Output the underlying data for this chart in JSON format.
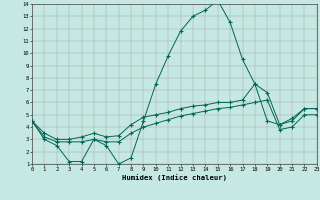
{
  "xlabel": "Humidex (Indice chaleur)",
  "background_color": "#c5e8e2",
  "line_color": "#006655",
  "line1_x": [
    0,
    1,
    2,
    3,
    4,
    5,
    6,
    7,
    8,
    9,
    10,
    11,
    12,
    13,
    14,
    15,
    16,
    17,
    18,
    19,
    20,
    21,
    22,
    23
  ],
  "line1_y": [
    4.5,
    3.0,
    2.5,
    1.2,
    1.2,
    3.0,
    2.5,
    1.0,
    1.5,
    4.5,
    7.5,
    9.8,
    11.8,
    13.0,
    13.5,
    14.3,
    12.5,
    9.5,
    7.5,
    4.5,
    4.2,
    4.7,
    5.5,
    5.5
  ],
  "line2_x": [
    0,
    1,
    2,
    3,
    4,
    5,
    6,
    7,
    8,
    9,
    10,
    11,
    12,
    13,
    14,
    15,
    16,
    17,
    18,
    19,
    20,
    21,
    22,
    23
  ],
  "line2_y": [
    4.5,
    3.5,
    3.0,
    3.0,
    3.2,
    3.5,
    3.2,
    3.3,
    4.2,
    4.8,
    5.0,
    5.2,
    5.5,
    5.7,
    5.8,
    6.0,
    6.0,
    6.2,
    7.5,
    6.8,
    4.2,
    4.5,
    5.5,
    5.5
  ],
  "line3_x": [
    0,
    1,
    2,
    3,
    4,
    5,
    6,
    7,
    8,
    9,
    10,
    11,
    12,
    13,
    14,
    15,
    16,
    17,
    18,
    19,
    20,
    21,
    22,
    23
  ],
  "line3_y": [
    4.5,
    3.2,
    2.8,
    2.8,
    2.8,
    3.0,
    2.8,
    2.8,
    3.5,
    4.0,
    4.3,
    4.6,
    4.9,
    5.1,
    5.3,
    5.5,
    5.6,
    5.8,
    6.0,
    6.2,
    3.8,
    4.0,
    5.0,
    5.0
  ],
  "xlim": [
    0,
    23
  ],
  "ylim": [
    1,
    14
  ],
  "xticks": [
    0,
    1,
    2,
    3,
    4,
    5,
    6,
    7,
    8,
    9,
    10,
    11,
    12,
    13,
    14,
    15,
    16,
    17,
    18,
    19,
    20,
    21,
    22,
    23
  ],
  "yticks": [
    1,
    2,
    3,
    4,
    5,
    6,
    7,
    8,
    9,
    10,
    11,
    12,
    13,
    14
  ],
  "figsize": [
    3.2,
    2.0
  ],
  "dpi": 100
}
